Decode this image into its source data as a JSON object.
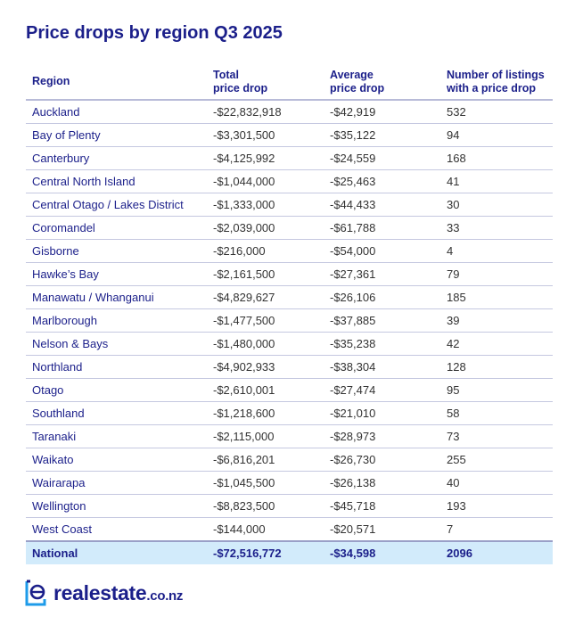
{
  "title": "Price drops by region Q3 2025",
  "columns": [
    "Region",
    "Total price drop",
    "Average price drop",
    "Number of listings with a price drop"
  ],
  "column_lines": [
    [
      "Region"
    ],
    [
      "Total",
      "price drop"
    ],
    [
      "Average",
      "price drop"
    ],
    [
      "Number of listings",
      "with a price drop"
    ]
  ],
  "rows": [
    [
      "Auckland",
      "-$22,832,918",
      "-$42,919",
      "532"
    ],
    [
      "Bay of Plenty",
      "-$3,301,500",
      "-$35,122",
      "94"
    ],
    [
      "Canterbury",
      "-$4,125,992",
      "-$24,559",
      "168"
    ],
    [
      "Central North Island",
      "-$1,044,000",
      "-$25,463",
      "41"
    ],
    [
      "Central Otago / Lakes District",
      "-$1,333,000",
      "-$44,433",
      "30"
    ],
    [
      "Coromandel",
      "-$2,039,000",
      "-$61,788",
      "33"
    ],
    [
      "Gisborne",
      "-$216,000",
      "-$54,000",
      "4"
    ],
    [
      "Hawke’s Bay",
      "-$2,161,500",
      "-$27,361",
      "79"
    ],
    [
      "Manawatu / Whanganui",
      "-$4,829,627",
      "-$26,106",
      "185"
    ],
    [
      "Marlborough",
      "-$1,477,500",
      "-$37,885",
      "39"
    ],
    [
      "Nelson & Bays",
      "-$1,480,000",
      "-$35,238",
      "42"
    ],
    [
      "Northland",
      "-$4,902,933",
      "-$38,304",
      "128"
    ],
    [
      "Otago",
      "-$2,610,001",
      "-$27,474",
      "95"
    ],
    [
      "Southland",
      "-$1,218,600",
      "-$21,010",
      "58"
    ],
    [
      "Taranaki",
      "-$2,115,000",
      "-$28,973",
      "73"
    ],
    [
      "Waikato",
      "-$6,816,201",
      "-$26,730",
      "255"
    ],
    [
      "Wairarapa",
      "-$1,045,500",
      "-$26,138",
      "40"
    ],
    [
      "Wellington",
      "-$8,823,500",
      "-$45,718",
      "193"
    ],
    [
      "West Coast",
      "-$144,000",
      "-$20,571",
      "7"
    ]
  ],
  "total": [
    "National",
    "-$72,516,772",
    "-$34,598",
    "2096"
  ],
  "logo": {
    "name": "realestate",
    "suffix": ".co.nz",
    "brand_color": "#1b1f8a",
    "accent_color": "#1e9be9"
  },
  "colors": {
    "heading": "#1b1f8a",
    "total_row_bg": "#d2ebfb"
  }
}
